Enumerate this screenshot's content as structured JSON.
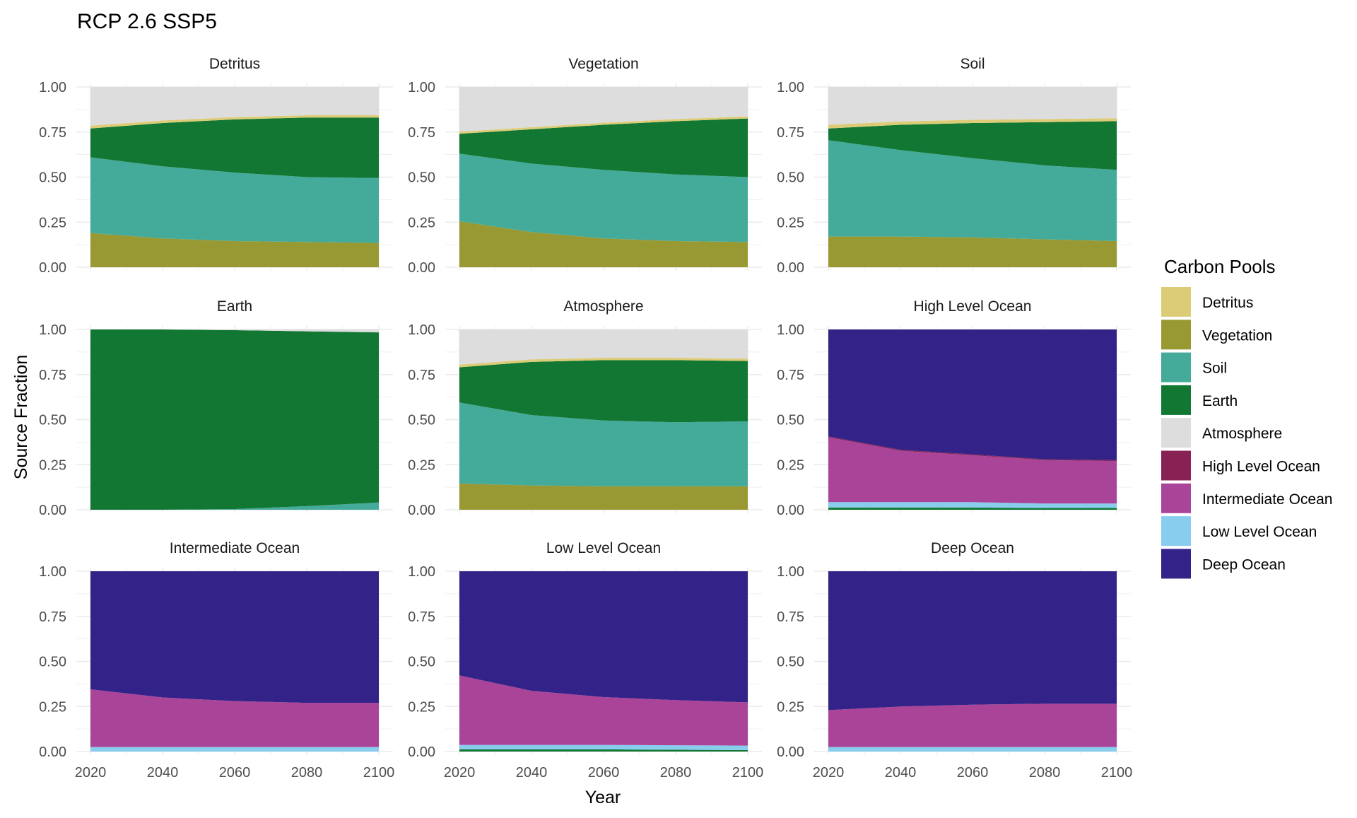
{
  "chart_data": {
    "type": "area",
    "title": "RCP 2.6 SSP5",
    "xlabel": "Year",
    "ylabel": "Source Fraction",
    "xlim": [
      2020,
      2100
    ],
    "ylim": [
      0,
      1
    ],
    "x_ticks": [
      "2020",
      "2040",
      "2060",
      "2080",
      "2100"
    ],
    "y_ticks": [
      "0.00",
      "0.25",
      "0.50",
      "0.75",
      "1.00"
    ],
    "grid": true,
    "stacked": true,
    "legend": {
      "title": "Carbon Pools",
      "position": "right",
      "items": [
        {
          "name": "Detritus",
          "color": "#DDCC77"
        },
        {
          "name": "Vegetation",
          "color": "#999933"
        },
        {
          "name": "Soil",
          "color": "#44AA99"
        },
        {
          "name": "Earth",
          "color": "#117733"
        },
        {
          "name": "Atmosphere",
          "color": "#DDDDDD"
        },
        {
          "name": "High Level Ocean",
          "color": "#882255"
        },
        {
          "name": "Intermediate Ocean",
          "color": "#AA4499"
        },
        {
          "name": "Low Level Ocean",
          "color": "#88CCEE"
        },
        {
          "name": "Deep Ocean",
          "color": "#332288"
        }
      ]
    },
    "x": [
      2020,
      2040,
      2060,
      2080,
      2100
    ],
    "panels": [
      {
        "title": "Detritus",
        "series": {
          "Vegetation": [
            0.19,
            0.16,
            0.145,
            0.14,
            0.135
          ],
          "Soil": [
            0.42,
            0.4,
            0.38,
            0.36,
            0.36
          ],
          "Earth": [
            0.16,
            0.24,
            0.295,
            0.33,
            0.335
          ],
          "Detritus": [
            0.015,
            0.014,
            0.013,
            0.013,
            0.013
          ],
          "Atmosphere": [
            0.215,
            0.186,
            0.167,
            0.157,
            0.157
          ]
        }
      },
      {
        "title": "Vegetation",
        "series": {
          "Vegetation": [
            0.255,
            0.195,
            0.16,
            0.145,
            0.14
          ],
          "Soil": [
            0.375,
            0.38,
            0.38,
            0.37,
            0.36
          ],
          "Earth": [
            0.11,
            0.19,
            0.25,
            0.295,
            0.325
          ],
          "Detritus": [
            0.012,
            0.012,
            0.012,
            0.012,
            0.012
          ],
          "Atmosphere": [
            0.248,
            0.223,
            0.198,
            0.178,
            0.163
          ]
        }
      },
      {
        "title": "Soil",
        "series": {
          "Vegetation": [
            0.17,
            0.17,
            0.165,
            0.155,
            0.145
          ],
          "Soil": [
            0.535,
            0.48,
            0.44,
            0.41,
            0.395
          ],
          "Earth": [
            0.065,
            0.14,
            0.195,
            0.24,
            0.27
          ],
          "Detritus": [
            0.02,
            0.019,
            0.018,
            0.017,
            0.017
          ],
          "Atmosphere": [
            0.21,
            0.191,
            0.182,
            0.178,
            0.173
          ]
        }
      },
      {
        "title": "Earth",
        "series": {
          "Soil": [
            0.0,
            0.0,
            0.004,
            0.02,
            0.04
          ],
          "Earth": [
            1.0,
            1.0,
            0.992,
            0.97,
            0.944
          ],
          "Atmosphere": [
            0.0,
            0.0,
            0.004,
            0.01,
            0.016
          ]
        }
      },
      {
        "title": "Atmosphere",
        "series": {
          "Vegetation": [
            0.145,
            0.135,
            0.13,
            0.13,
            0.13
          ],
          "Soil": [
            0.45,
            0.39,
            0.365,
            0.355,
            0.36
          ],
          "Earth": [
            0.195,
            0.295,
            0.335,
            0.345,
            0.335
          ],
          "Detritus": [
            0.015,
            0.014,
            0.013,
            0.013,
            0.013
          ],
          "Atmosphere": [
            0.195,
            0.166,
            0.157,
            0.157,
            0.162
          ]
        }
      },
      {
        "title": "High Level Ocean",
        "series": {
          "Earth": [
            0.012,
            0.012,
            0.012,
            0.01,
            0.01
          ],
          "Low Level Ocean": [
            0.03,
            0.03,
            0.03,
            0.025,
            0.025
          ],
          "Intermediate Ocean": [
            0.36,
            0.285,
            0.26,
            0.24,
            0.235
          ],
          "High Level Ocean": [
            0.005,
            0.005,
            0.005,
            0.005,
            0.005
          ],
          "Deep Ocean": [
            0.593,
            0.668,
            0.693,
            0.72,
            0.725
          ]
        }
      },
      {
        "title": "Intermediate Ocean",
        "series": {
          "Low Level Ocean": [
            0.025,
            0.025,
            0.025,
            0.025,
            0.025
          ],
          "Intermediate Ocean": [
            0.32,
            0.275,
            0.255,
            0.245,
            0.245
          ],
          "Deep Ocean": [
            0.655,
            0.7,
            0.72,
            0.73,
            0.73
          ]
        }
      },
      {
        "title": "Low Level Ocean",
        "series": {
          "Earth": [
            0.012,
            0.012,
            0.012,
            0.01,
            0.008
          ],
          "Low Level Ocean": [
            0.025,
            0.025,
            0.025,
            0.025,
            0.025
          ],
          "Intermediate Ocean": [
            0.385,
            0.3,
            0.265,
            0.25,
            0.24
          ],
          "Deep Ocean": [
            0.578,
            0.663,
            0.698,
            0.715,
            0.727
          ]
        }
      },
      {
        "title": "Deep Ocean",
        "series": {
          "Low Level Ocean": [
            0.025,
            0.025,
            0.025,
            0.025,
            0.025
          ],
          "Intermediate Ocean": [
            0.205,
            0.225,
            0.235,
            0.24,
            0.24
          ],
          "Deep Ocean": [
            0.77,
            0.75,
            0.74,
            0.735,
            0.735
          ]
        }
      }
    ]
  }
}
